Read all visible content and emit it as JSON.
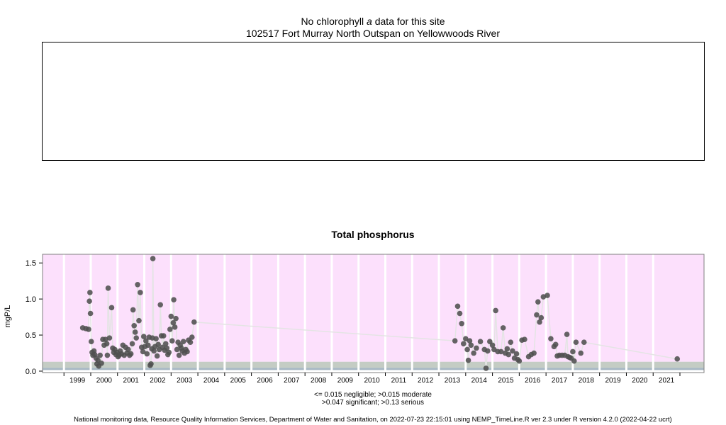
{
  "header": {
    "no_data_prefix": "No chlorophyll",
    "no_data_italic": "a",
    "no_data_suffix": "data for this site",
    "site": "102517 Fort Murray North Outspan on Yellowwoods River"
  },
  "footer": {
    "legend_line1": "<= 0.015 negligible; >0.015 moderate",
    "legend_line2": ">0.047 significant; >0.13 serious",
    "credit": "National monitoring data, Resource Quality Information Services, Department of Water and Sanitation, on 2022-07-23 22:15:01 using NEMP_TimeLine.R ver 2.3 under R version 4.2.0 (2022-04-22 ucrt)"
  },
  "colors": {
    "serious": "#fce0fc",
    "significant": "#c4ccc4",
    "moderate": "#a8b8c4",
    "point": "#505050",
    "line": "#e4e4e4",
    "grid": "#ffffff"
  },
  "chart_data": {
    "type": "scatter",
    "title": "Total phosphorus",
    "xlabel": "",
    "ylabel": "mgP/L",
    "xlim": [
      1998.2,
      2022.9
    ],
    "ylim": [
      -0.02,
      1.62
    ],
    "yticks": [
      0.0,
      0.5,
      1.0,
      1.5
    ],
    "ytick_labels": [
      "0.0",
      "0.5",
      "1.0",
      "1.5"
    ],
    "xticks": [
      "1999",
      "2000",
      "2001",
      "2002",
      "2003",
      "2004",
      "2005",
      "2006",
      "2007",
      "2008",
      "2009",
      "2010",
      "2011",
      "2012",
      "2013",
      "2014",
      "2015",
      "2016",
      "2017",
      "2018",
      "2019",
      "2020",
      "2021"
    ],
    "bands": [
      {
        "name": "serious",
        "from": 0.13,
        "to": 1.62
      },
      {
        "name": "significant",
        "from": 0.047,
        "to": 0.13
      },
      {
        "name": "moderate",
        "from": 0.015,
        "to": 0.047
      },
      {
        "name": "negligible",
        "from": -0.02,
        "to": 0.015
      }
    ],
    "grid": true,
    "connect_points": true,
    "points": [
      [
        1999.7,
        0.6
      ],
      [
        1999.82,
        0.59
      ],
      [
        1999.92,
        0.58
      ],
      [
        1999.95,
        0.97
      ],
      [
        1999.97,
        1.09
      ],
      [
        1999.99,
        0.8
      ],
      [
        2000.02,
        0.41
      ],
      [
        2000.05,
        0.26
      ],
      [
        2000.08,
        0.22
      ],
      [
        2000.12,
        0.28
      ],
      [
        2000.15,
        0.23
      ],
      [
        2000.2,
        0.18
      ],
      [
        2000.23,
        0.1
      ],
      [
        2000.27,
        0.15
      ],
      [
        2000.3,
        0.07
      ],
      [
        2000.35,
        0.22
      ],
      [
        2000.4,
        0.11
      ],
      [
        2000.45,
        0.44
      ],
      [
        2000.5,
        0.36
      ],
      [
        2000.55,
        0.44
      ],
      [
        2000.6,
        0.38
      ],
      [
        2000.62,
        0.22
      ],
      [
        2000.65,
        1.15
      ],
      [
        2000.7,
        0.46
      ],
      [
        2000.78,
        0.88
      ],
      [
        2000.82,
        0.32
      ],
      [
        2000.86,
        0.26
      ],
      [
        2000.9,
        0.3
      ],
      [
        2000.94,
        0.23
      ],
      [
        2000.98,
        0.26
      ],
      [
        2001.02,
        0.2
      ],
      [
        2001.06,
        0.22
      ],
      [
        2001.1,
        0.28
      ],
      [
        2001.15,
        0.24
      ],
      [
        2001.2,
        0.36
      ],
      [
        2001.25,
        0.22
      ],
      [
        2001.3,
        0.33
      ],
      [
        2001.35,
        0.25
      ],
      [
        2001.4,
        0.3
      ],
      [
        2001.45,
        0.22
      ],
      [
        2001.5,
        0.24
      ],
      [
        2001.55,
        0.38
      ],
      [
        2001.58,
        0.85
      ],
      [
        2001.62,
        0.63
      ],
      [
        2001.66,
        0.54
      ],
      [
        2001.7,
        0.46
      ],
      [
        2001.75,
        1.2
      ],
      [
        2001.8,
        0.7
      ],
      [
        2001.85,
        1.09
      ],
      [
        2001.9,
        0.33
      ],
      [
        2001.95,
        0.27
      ],
      [
        2001.98,
        0.48
      ],
      [
        2002.02,
        0.34
      ],
      [
        2002.06,
        0.42
      ],
      [
        2002.1,
        0.24
      ],
      [
        2002.14,
        0.36
      ],
      [
        2002.18,
        0.47
      ],
      [
        2002.22,
        0.08
      ],
      [
        2002.25,
        0.1
      ],
      [
        2002.28,
        0.31
      ],
      [
        2002.3,
        0.46
      ],
      [
        2002.32,
        1.56
      ],
      [
        2002.36,
        0.28
      ],
      [
        2002.4,
        0.34
      ],
      [
        2002.44,
        0.45
      ],
      [
        2002.48,
        0.21
      ],
      [
        2002.52,
        0.37
      ],
      [
        2002.56,
        0.3
      ],
      [
        2002.6,
        0.92
      ],
      [
        2002.64,
        0.49
      ],
      [
        2002.68,
        0.33
      ],
      [
        2002.72,
        0.49
      ],
      [
        2002.76,
        0.29
      ],
      [
        2002.8,
        0.38
      ],
      [
        2002.84,
        0.32
      ],
      [
        2002.88,
        0.23
      ],
      [
        2002.92,
        0.26
      ],
      [
        2002.96,
        0.58
      ],
      [
        2003.0,
        0.76
      ],
      [
        2003.04,
        0.42
      ],
      [
        2003.08,
        0.67
      ],
      [
        2003.1,
        0.99
      ],
      [
        2003.14,
        0.61
      ],
      [
        2003.18,
        0.73
      ],
      [
        2003.22,
        0.3
      ],
      [
        2003.26,
        0.4
      ],
      [
        2003.3,
        0.22
      ],
      [
        2003.34,
        0.36
      ],
      [
        2003.38,
        0.32
      ],
      [
        2003.42,
        0.28
      ],
      [
        2003.46,
        0.41
      ],
      [
        2003.5,
        0.25
      ],
      [
        2003.55,
        0.3
      ],
      [
        2003.6,
        0.27
      ],
      [
        2003.65,
        0.43
      ],
      [
        2003.72,
        0.4
      ],
      [
        2003.78,
        0.47
      ],
      [
        2003.86,
        0.68
      ],
      [
        2013.6,
        0.42
      ],
      [
        2013.7,
        0.9
      ],
      [
        2013.78,
        0.8
      ],
      [
        2013.85,
        0.66
      ],
      [
        2013.92,
        0.38
      ],
      [
        2014.0,
        0.45
      ],
      [
        2014.06,
        0.3
      ],
      [
        2014.1,
        0.15
      ],
      [
        2014.15,
        0.42
      ],
      [
        2014.2,
        0.36
      ],
      [
        2014.3,
        0.25
      ],
      [
        2014.4,
        0.32
      ],
      [
        2014.55,
        0.41
      ],
      [
        2014.7,
        0.3
      ],
      [
        2014.76,
        0.04
      ],
      [
        2014.82,
        0.28
      ],
      [
        2014.9,
        0.41
      ],
      [
        2015.0,
        0.36
      ],
      [
        2015.06,
        0.3
      ],
      [
        2015.12,
        0.84
      ],
      [
        2015.2,
        0.27
      ],
      [
        2015.32,
        0.27
      ],
      [
        2015.4,
        0.6
      ],
      [
        2015.48,
        0.25
      ],
      [
        2015.55,
        0.31
      ],
      [
        2015.6,
        0.23
      ],
      [
        2015.68,
        0.4
      ],
      [
        2015.75,
        0.28
      ],
      [
        2015.82,
        0.18
      ],
      [
        2015.9,
        0.24
      ],
      [
        2015.95,
        0.16
      ],
      [
        2016.0,
        0.14
      ],
      [
        2016.1,
        0.43
      ],
      [
        2016.2,
        0.44
      ],
      [
        2016.35,
        0.2
      ],
      [
        2016.45,
        0.23
      ],
      [
        2016.55,
        0.25
      ],
      [
        2016.65,
        0.78
      ],
      [
        2016.7,
        0.96
      ],
      [
        2016.76,
        0.68
      ],
      [
        2016.82,
        0.74
      ],
      [
        2016.9,
        1.03
      ],
      [
        2017.05,
        1.05
      ],
      [
        2017.18,
        0.45
      ],
      [
        2017.3,
        0.34
      ],
      [
        2017.36,
        0.37
      ],
      [
        2017.42,
        0.21
      ],
      [
        2017.5,
        0.22
      ],
      [
        2017.6,
        0.22
      ],
      [
        2017.7,
        0.22
      ],
      [
        2017.78,
        0.51
      ],
      [
        2017.82,
        0.2
      ],
      [
        2017.88,
        0.19
      ],
      [
        2017.94,
        0.18
      ],
      [
        2018.0,
        0.27
      ],
      [
        2018.05,
        0.14
      ],
      [
        2018.12,
        0.4
      ],
      [
        2018.3,
        0.25
      ],
      [
        2018.42,
        0.4
      ],
      [
        2021.9,
        0.17
      ]
    ]
  }
}
